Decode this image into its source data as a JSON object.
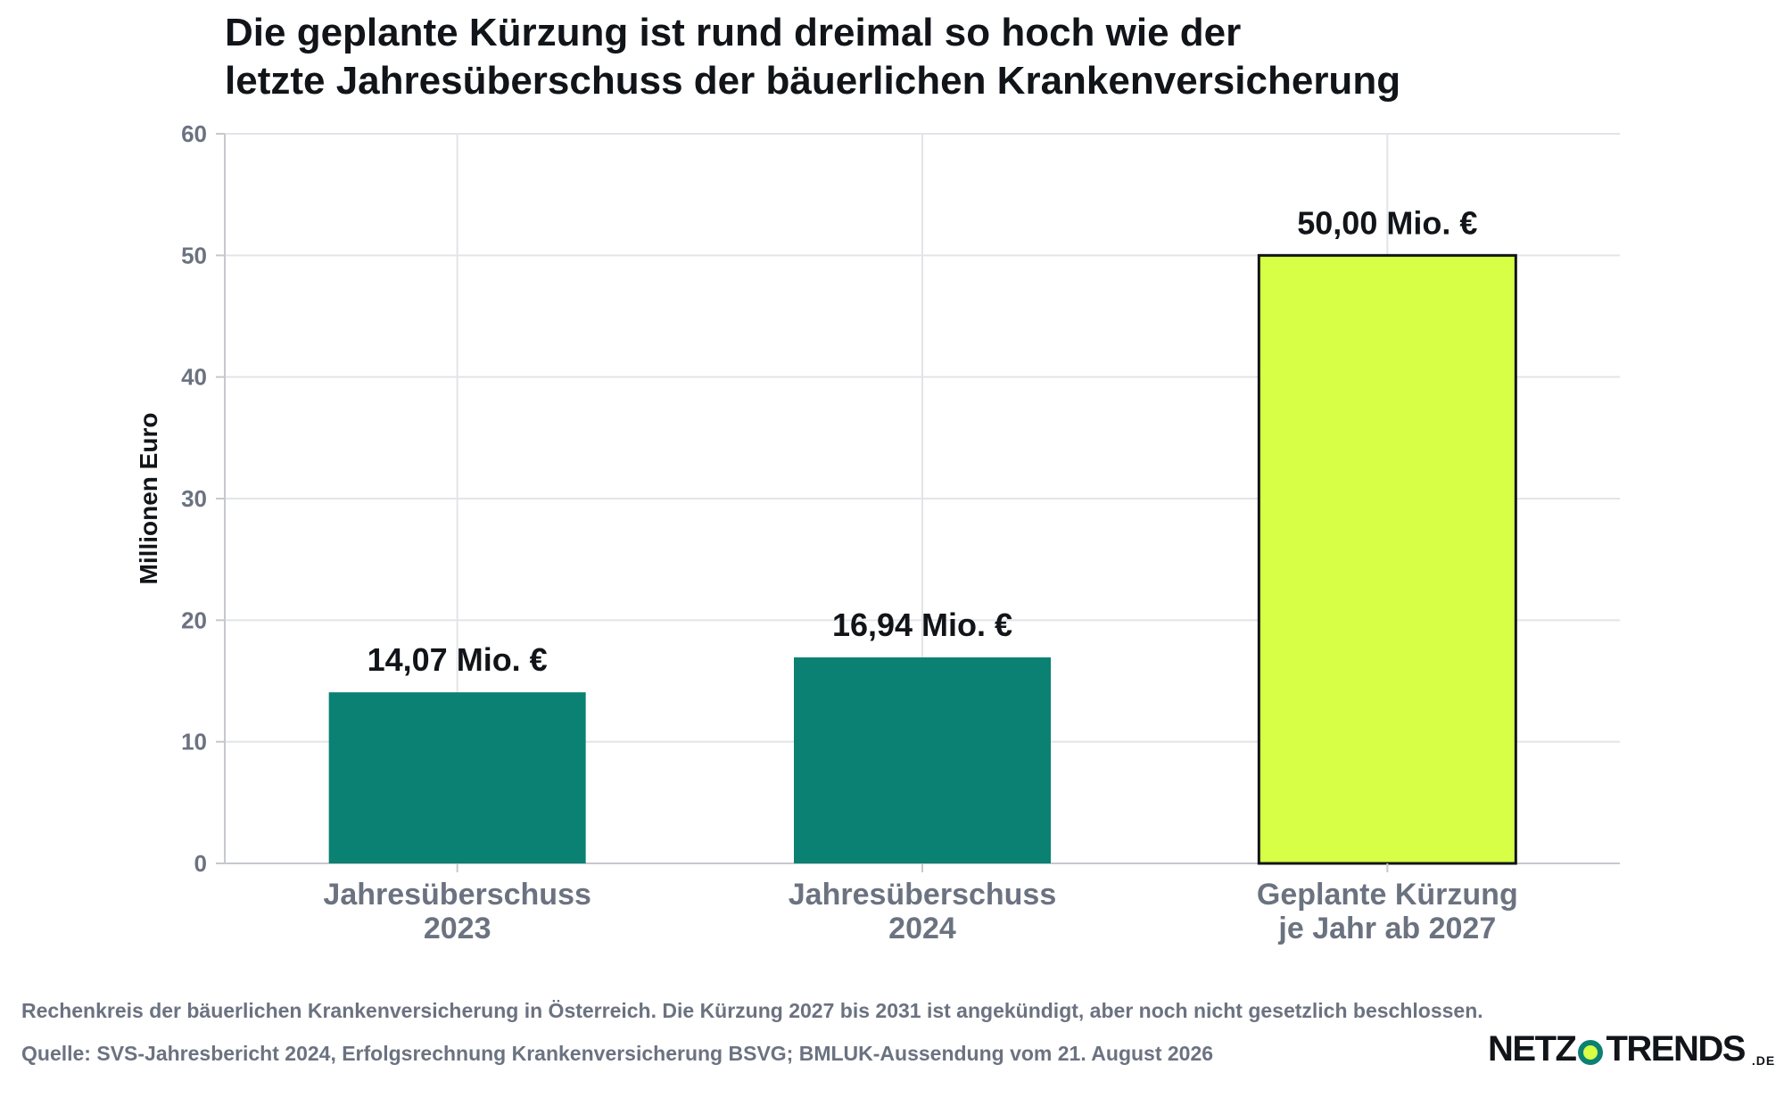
{
  "chart_data": {
    "type": "bar",
    "title_lines": [
      "Die geplante Kürzung ist rund dreimal so hoch wie der",
      "letzte Jahresüberschuss der bäuerlichen Krankenversicherung"
    ],
    "categories": [
      [
        "Jahresüberschuss",
        "2023"
      ],
      [
        "Jahresüberschuss",
        "2024"
      ],
      [
        "Geplante Kürzung",
        "je Jahr ab 2027"
      ]
    ],
    "values": [
      14.07,
      16.94,
      50.0
    ],
    "value_labels": [
      "14,07 Mio. €",
      "16,94 Mio. €",
      "50,00 Mio. €"
    ],
    "colors": [
      "#0b8173",
      "#0b8173",
      "#d7ff45"
    ],
    "highlight_index": 2,
    "ylabel": "Millionen Euro",
    "xlabel": "",
    "ylim": [
      0,
      60
    ],
    "yticks": [
      0,
      10,
      20,
      30,
      40,
      50,
      60
    ],
    "grid": true,
    "legend": "none"
  },
  "footnotes": {
    "note": "Rechenkreis der bäuerlichen Krankenversicherung in Österreich. Die Kürzung 2027 bis 2031 ist angekündigt, aber noch nicht gesetzlich beschlossen.",
    "source": "Quelle: SVS-Jahresbericht 2024, Erfolgsrechnung Krankenversicherung BSVG; BMLUK-Aussendung vom 21. August 2026"
  },
  "logo": {
    "left": "NETZ",
    "right": "TRENDS",
    "tld": ".DE"
  }
}
